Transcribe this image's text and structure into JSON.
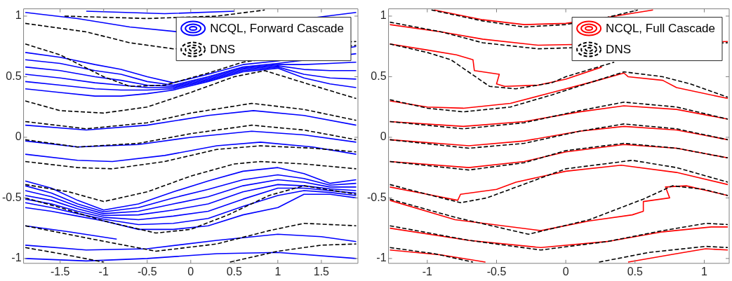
{
  "chart_data": [
    {
      "type": "line",
      "legend": "top right",
      "xlim": [
        -1.92,
        1.92
      ],
      "ylim": [
        -1.04,
        1.06
      ],
      "xticks": [
        -1.5,
        -1,
        -0.5,
        0,
        0.5,
        1,
        1.5
      ],
      "yticks": [
        -1,
        -0.5,
        0,
        0.5,
        1
      ],
      "series": [
        {
          "name": "NCQL, Forward Cascade",
          "color": "#0000ff",
          "line_style": "solid",
          "x": [
            -1.9,
            -1.3,
            -0.7,
            0,
            1.9
          ],
          "values": [
            1.03,
            0.98,
            0.91,
            0.86,
            1.03
          ]
        },
        {
          "color": "#0000ff",
          "line_style": "solid",
          "x": [
            -1.2,
            -0.3,
            0.5
          ],
          "values": [
            1.04,
            1.02,
            1.04
          ]
        },
        {
          "color": "#0000ff",
          "line_style": "solid",
          "x": [
            -1.9,
            -1.5,
            -1.1,
            -0.8,
            -0.5,
            -0.2,
            0.2,
            0.6,
            1.0,
            1.9
          ],
          "values": [
            0.7,
            0.66,
            0.6,
            0.56,
            0.5,
            0.45,
            0.52,
            0.6,
            0.63,
            0.75
          ]
        },
        {
          "color": "#0000ff",
          "line_style": "solid",
          "x": [
            -1.9,
            -1.5,
            -1.1,
            -0.8,
            -0.5,
            -0.2,
            0.2,
            0.6,
            1.0,
            1.9
          ],
          "values": [
            0.64,
            0.61,
            0.55,
            0.52,
            0.46,
            0.43,
            0.5,
            0.58,
            0.61,
            0.69
          ]
        },
        {
          "color": "#0000ff",
          "line_style": "solid",
          "x": [
            -1.9,
            -1.5,
            -1.1,
            -0.8,
            -0.5,
            -0.2,
            0.2,
            0.6,
            1.0,
            1.3,
            1.6,
            1.9
          ],
          "values": [
            0.58,
            0.55,
            0.5,
            0.47,
            0.43,
            0.42,
            0.49,
            0.57,
            0.6,
            0.6,
            0.61,
            0.62
          ]
        },
        {
          "color": "#0000ff",
          "line_style": "solid",
          "x": [
            -1.9,
            -1.5,
            -1.1,
            -0.8,
            -0.5,
            -0.2,
            0.2,
            0.6,
            1.0,
            1.3,
            1.6,
            1.9
          ],
          "values": [
            0.52,
            0.49,
            0.45,
            0.43,
            0.41,
            0.41,
            0.48,
            0.56,
            0.59,
            0.56,
            0.55,
            0.55
          ]
        },
        {
          "color": "#0000ff",
          "line_style": "solid",
          "x": [
            -1.9,
            -1.5,
            -1.1,
            -0.8,
            -0.5,
            -0.2,
            0.2,
            0.6,
            1.0,
            1.3,
            1.6,
            1.9
          ],
          "values": [
            0.46,
            0.43,
            0.4,
            0.39,
            0.39,
            0.4,
            0.47,
            0.55,
            0.58,
            0.52,
            0.49,
            0.48
          ]
        },
        {
          "color": "#0000ff",
          "line_style": "solid",
          "x": [
            -1.9,
            -1.5,
            -1.1,
            -0.8,
            -0.5,
            -0.2,
            0.2,
            0.6,
            1.0,
            1.3,
            1.6,
            1.9
          ],
          "values": [
            0.4,
            0.37,
            0.34,
            0.34,
            0.36,
            0.39,
            0.46,
            0.54,
            0.57,
            0.49,
            0.44,
            0.41
          ]
        },
        {
          "color": "#0000ff",
          "line_style": "solid",
          "x": [
            -1.9,
            -1.2,
            -0.5,
            0.2,
            0.72,
            1.3,
            1.9
          ],
          "values": [
            0.1,
            0.06,
            0.1,
            0.18,
            0.22,
            0.18,
            0.1
          ]
        },
        {
          "color": "#0000ff",
          "line_style": "solid",
          "x": [
            -1.9,
            -1.3,
            -0.6,
            0,
            0.7,
            1.3,
            1.9
          ],
          "values": [
            -0.03,
            -0.08,
            -0.06,
            0.0,
            0.05,
            0.02,
            -0.04
          ]
        },
        {
          "color": "#0000ff",
          "line_style": "solid",
          "x": [
            -1.9,
            -1.3,
            -0.9,
            -0.3,
            0.3,
            0.8,
            1.4,
            1.9
          ],
          "values": [
            -0.14,
            -0.19,
            -0.2,
            -0.15,
            -0.07,
            -0.04,
            -0.08,
            -0.14
          ]
        },
        {
          "color": "#0000ff",
          "line_style": "solid",
          "x": [
            -1.9,
            -1.6,
            -1.3,
            -1.0,
            -0.6,
            -0.2,
            0.2,
            0.6,
            1.0,
            1.3,
            1.6,
            1.9
          ],
          "values": [
            -0.36,
            -0.42,
            -0.52,
            -0.6,
            -0.55,
            -0.45,
            -0.36,
            -0.28,
            -0.25,
            -0.3,
            -0.38,
            -0.35
          ]
        },
        {
          "color": "#0000ff",
          "line_style": "solid",
          "x": [
            -1.9,
            -1.6,
            -1.3,
            -1.0,
            -0.6,
            -0.2,
            0.2,
            0.6,
            1.0,
            1.3,
            1.6,
            1.9
          ],
          "values": [
            -0.4,
            -0.46,
            -0.55,
            -0.615,
            -0.58,
            -0.5,
            -0.43,
            -0.35,
            -0.31,
            -0.34,
            -0.395,
            -0.38
          ]
        },
        {
          "color": "#0000ff",
          "line_style": "solid",
          "x": [
            -1.9,
            -1.6,
            -1.3,
            -1.0,
            -0.6,
            -0.2,
            0.2,
            0.6,
            1.0,
            1.3,
            1.6,
            1.9
          ],
          "values": [
            -0.44,
            -0.49,
            -0.57,
            -0.63,
            -0.61,
            -0.55,
            -0.49,
            -0.4,
            -0.35,
            -0.37,
            -0.41,
            -0.41
          ]
        },
        {
          "color": "#0000ff",
          "line_style": "solid",
          "x": [
            -1.9,
            -1.6,
            -1.3,
            -1.0,
            -0.6,
            -0.2,
            0.2,
            0.6,
            1.0,
            1.3,
            1.6,
            1.9
          ],
          "values": [
            -0.48,
            -0.52,
            -0.59,
            -0.645,
            -0.64,
            -0.6,
            -0.55,
            -0.45,
            -0.39,
            -0.4,
            -0.425,
            -0.44
          ]
        },
        {
          "color": "#0000ff",
          "line_style": "solid",
          "x": [
            -1.9,
            -1.6,
            -1.3,
            -1.0,
            -0.6,
            -0.2,
            0.2,
            0.6,
            1.0,
            1.3,
            1.6,
            1.9
          ],
          "values": [
            -0.51,
            -0.55,
            -0.61,
            -0.66,
            -0.68,
            -0.65,
            -0.61,
            -0.51,
            -0.42,
            -0.42,
            -0.44,
            -0.46
          ]
        },
        {
          "color": "#0000ff",
          "line_style": "solid",
          "x": [
            -1.9,
            -1.6,
            -1.3,
            -1.0,
            -0.6,
            -0.2,
            0.2,
            0.6,
            1.0,
            1.3,
            1.6,
            1.9
          ],
          "values": [
            -0.54,
            -0.58,
            -0.63,
            -0.675,
            -0.72,
            -0.71,
            -0.67,
            -0.57,
            -0.48,
            -0.44,
            -0.455,
            -0.48
          ]
        },
        {
          "color": "#0000ff",
          "line_style": "solid",
          "x": [
            -1.9,
            -1.6,
            -1.3,
            -1.0,
            -0.6,
            -0.2,
            0.2,
            0.6,
            1.0,
            1.3,
            1.6,
            1.9
          ],
          "values": [
            -0.58,
            -0.61,
            -0.65,
            -0.69,
            -0.76,
            -0.76,
            -0.73,
            -0.64,
            -0.58,
            -0.47,
            -0.47,
            -0.5
          ]
        },
        {
          "color": "#0000ff",
          "line_style": "solid",
          "x": [
            -1.9,
            -1.4,
            -0.85
          ],
          "values": [
            -0.73,
            -0.78,
            -0.84
          ]
        },
        {
          "color": "#0000ff",
          "line_style": "solid",
          "x": [
            -1.9,
            -1.2,
            -0.5,
            0.3,
            1.0,
            1.5,
            1.9
          ],
          "values": [
            -0.89,
            -0.93,
            -0.92,
            -0.85,
            -0.8,
            -0.82,
            -0.86
          ]
        },
        {
          "color": "#0000ff",
          "line_style": "solid",
          "x": [
            -1.9,
            -1.2,
            -0.5,
            0.3,
            1.0,
            1.9
          ],
          "values": [
            -1.0,
            -1.02,
            -1.0,
            -0.96,
            -0.95,
            -1.0
          ]
        },
        {
          "name": "DNS",
          "color": "#000000",
          "line_style": "dashed",
          "x": [
            -1.45,
            -0.5,
            0.3,
            0.85
          ],
          "values": [
            1.0,
            0.98,
            1.0,
            1.05
          ]
        },
        {
          "color": "#000000",
          "line_style": "dashed",
          "x": [
            -1.9,
            -1.2,
            -0.7,
            -0.2,
            1.9
          ],
          "values": [
            0.94,
            0.87,
            0.78,
            0.73,
            0.79
          ]
        },
        {
          "color": "#000000",
          "line_style": "dashed",
          "x": [
            -1.9,
            -1.5,
            -1.0,
            -0.7,
            -0.3,
            0.2,
            0.6,
            1.9
          ],
          "values": [
            0.77,
            0.68,
            0.5,
            0.42,
            0.43,
            0.53,
            0.62,
            0.76
          ]
        },
        {
          "color": "#000000",
          "line_style": "dashed",
          "x": [
            -1.9,
            -1.5,
            -1.0,
            -0.5,
            0,
            0.5,
            0.85,
            1.3,
            1.9
          ],
          "values": [
            0.3,
            0.22,
            0.2,
            0.25,
            0.37,
            0.5,
            0.55,
            0.45,
            0.32
          ]
        },
        {
          "color": "#000000",
          "line_style": "dashed",
          "x": [
            -1.9,
            -1.2,
            -0.5,
            0,
            0.7,
            1.3,
            1.9
          ],
          "values": [
            0.13,
            0.07,
            0.12,
            0.2,
            0.28,
            0.23,
            0.14
          ]
        },
        {
          "color": "#000000",
          "line_style": "dashed",
          "x": [
            -1.9,
            -1.3,
            -0.6,
            0,
            0.7,
            1.3,
            1.9
          ],
          "values": [
            -0.02,
            -0.08,
            -0.05,
            0.03,
            0.1,
            0.06,
            -0.02
          ]
        },
        {
          "color": "#000000",
          "line_style": "dashed",
          "x": [
            -1.9,
            -1.3,
            -0.9,
            -0.3,
            0.3,
            0.8,
            1.4,
            1.9
          ],
          "values": [
            -0.2,
            -0.25,
            -0.26,
            -0.2,
            -0.1,
            -0.07,
            -0.09,
            -0.12
          ]
        },
        {
          "color": "#000000",
          "line_style": "dashed",
          "x": [
            -1.9,
            -1.4,
            -1.0,
            -0.5,
            0,
            0.5,
            0.8,
            1.3,
            1.9
          ],
          "values": [
            -0.39,
            -0.45,
            -0.53,
            -0.45,
            -0.32,
            -0.22,
            -0.2,
            -0.22,
            -0.26
          ]
        },
        {
          "color": "#000000",
          "line_style": "dashed",
          "x": [
            -1.9,
            -1.5,
            -1.0,
            -0.4,
            0,
            0.43,
            0.9,
            1.3,
            1.9
          ],
          "values": [
            -0.5,
            -0.58,
            -0.69,
            -0.79,
            -0.76,
            -0.64,
            -0.48,
            -0.4,
            -0.47
          ]
        },
        {
          "color": "#000000",
          "line_style": "dashed",
          "x": [
            -1.9,
            -1.2,
            -0.4,
            0.3,
            0.9,
            1.3,
            1.9
          ],
          "values": [
            -0.73,
            -0.83,
            -0.94,
            -0.88,
            -0.77,
            -0.71,
            -0.73
          ]
        },
        {
          "color": "#000000",
          "line_style": "dashed",
          "x": [
            -1.9,
            -1.5,
            -1.0
          ],
          "values": [
            -0.91,
            -0.96,
            -1.03
          ]
        },
        {
          "color": "#000000",
          "line_style": "dashed",
          "x": [
            0.45,
            1.0,
            1.5,
            1.9
          ],
          "values": [
            -1.03,
            -0.94,
            -0.89,
            -0.88
          ]
        }
      ]
    },
    {
      "type": "line",
      "legend": "top right",
      "xlim": [
        -1.28,
        1.18
      ],
      "ylim": [
        -1.04,
        1.06
      ],
      "xticks": [
        -1,
        -0.5,
        0,
        0.5,
        1
      ],
      "yticks": [
        -1,
        -0.5,
        0,
        0.5,
        1
      ],
      "series": [
        {
          "name": "NCQL, Full Cascade",
          "color": "#ff0000",
          "line_style": "solid",
          "x": [
            -0.95,
            -0.6,
            -0.3,
            0,
            0.3,
            0.63
          ],
          "values": [
            1.05,
            0.97,
            0.93,
            0.94,
            0.99,
            1.05
          ]
        },
        {
          "color": "#ff0000",
          "line_style": "solid",
          "x": [
            -1.27,
            -0.9,
            -0.6,
            -0.2,
            1.17
          ],
          "values": [
            0.93,
            0.87,
            0.81,
            0.76,
            0.79
          ]
        },
        {
          "color": "#ff0000",
          "line_style": "solid",
          "x": [
            -1.27,
            -1.0,
            -0.79,
            -0.67,
            -0.66,
            -0.48,
            -0.5,
            -0.44,
            -0.2,
            0.0,
            0.26
          ],
          "values": [
            0.77,
            0.72,
            0.68,
            0.64,
            0.55,
            0.52,
            0.44,
            0.42,
            0.43,
            0.48,
            0.58
          ]
        },
        {
          "color": "#ff0000",
          "line_style": "solid",
          "x": [
            -1.27,
            -1.0,
            -0.74,
            -0.4,
            -0.1,
            0.2,
            0.42,
            0.45,
            0.7,
            0.8,
            1.17
          ],
          "values": [
            0.3,
            0.25,
            0.24,
            0.28,
            0.37,
            0.46,
            0.53,
            0.5,
            0.47,
            0.41,
            0.32
          ]
        },
        {
          "color": "#ff0000",
          "line_style": "solid",
          "x": [
            -1.27,
            -0.74,
            -0.3,
            0.1,
            0.42,
            0.8,
            1.17
          ],
          "values": [
            0.13,
            0.09,
            0.13,
            0.21,
            0.26,
            0.23,
            0.15
          ]
        },
        {
          "color": "#ff0000",
          "line_style": "solid",
          "x": [
            -1.27,
            -0.7,
            -0.3,
            0.1,
            0.42,
            0.8,
            1.17
          ],
          "values": [
            -0.02,
            -0.07,
            -0.03,
            0.05,
            0.09,
            0.06,
            -0.02
          ]
        },
        {
          "color": "#ff0000",
          "line_style": "solid",
          "x": [
            -1.27,
            -0.7,
            -0.3,
            0,
            0.42,
            0.8,
            1.17
          ],
          "values": [
            -0.2,
            -0.25,
            -0.2,
            -0.12,
            -0.06,
            -0.09,
            -0.17
          ]
        },
        {
          "color": "#ff0000",
          "line_style": "solid",
          "x": [
            -1.27,
            -1.0,
            -0.78,
            -0.76,
            -0.5,
            -0.36,
            0,
            0.4,
            0.8,
            1.17
          ],
          "values": [
            -0.41,
            -0.47,
            -0.52,
            -0.47,
            -0.43,
            -0.37,
            -0.28,
            -0.23,
            -0.29,
            -0.39
          ]
        },
        {
          "color": "#ff0000",
          "line_style": "solid",
          "x": [
            -1.27,
            -0.8,
            -0.18,
            0.17,
            0.48,
            0.56,
            0.56,
            0.75,
            0.72,
            0.87,
            1.17
          ],
          "values": [
            -0.52,
            -0.68,
            -0.77,
            -0.69,
            -0.64,
            -0.61,
            -0.53,
            -0.5,
            -0.41,
            -0.4,
            -0.48
          ]
        },
        {
          "color": "#ff0000",
          "line_style": "solid",
          "x": [
            -1.27,
            -0.7,
            -0.18,
            0.3,
            0.7,
            1.05,
            1.17
          ],
          "values": [
            -0.75,
            -0.85,
            -0.91,
            -0.86,
            -0.78,
            -0.74,
            -0.74
          ]
        },
        {
          "color": "#ff0000",
          "line_style": "solid",
          "x": [
            -1.27,
            -0.9,
            -0.58
          ],
          "values": [
            -0.93,
            -0.97,
            -1.03
          ]
        },
        {
          "color": "#ff0000",
          "line_style": "solid",
          "x": [
            0.45,
            0.8,
            1.01,
            1.17
          ],
          "values": [
            -1.03,
            -0.96,
            -0.92,
            -0.93
          ]
        },
        {
          "name": "DNS",
          "color": "#000000",
          "line_style": "dashed",
          "x": [
            -0.97,
            -0.6,
            -0.3,
            0,
            0.3,
            0.52
          ],
          "values": [
            1.05,
            0.96,
            0.91,
            0.93,
            0.99,
            1.05
          ]
        },
        {
          "color": "#000000",
          "line_style": "dashed",
          "x": [
            -1.27,
            -0.9,
            -0.6,
            -0.2,
            1.17
          ],
          "values": [
            0.95,
            0.87,
            0.78,
            0.73,
            0.78
          ]
        },
        {
          "color": "#000000",
          "line_style": "dashed",
          "x": [
            -1.27,
            -1.0,
            -0.83,
            -0.55,
            -0.36,
            -0.1,
            0,
            0.35
          ],
          "values": [
            0.77,
            0.7,
            0.64,
            0.42,
            0.4,
            0.45,
            0.5,
            0.62
          ]
        },
        {
          "color": "#000000",
          "line_style": "dashed",
          "x": [
            -1.27,
            -1.0,
            -0.74,
            -0.4,
            -0.1,
            0.2,
            0.42,
            0.7,
            0.9,
            1.17
          ],
          "values": [
            0.31,
            0.24,
            0.21,
            0.25,
            0.35,
            0.46,
            0.54,
            0.5,
            0.44,
            0.33
          ]
        },
        {
          "color": "#000000",
          "line_style": "dashed",
          "x": [
            -1.27,
            -0.74,
            -0.3,
            0.1,
            0.42,
            0.8,
            1.17
          ],
          "values": [
            0.13,
            0.07,
            0.12,
            0.22,
            0.29,
            0.25,
            0.15
          ]
        },
        {
          "color": "#000000",
          "line_style": "dashed",
          "x": [
            -1.27,
            -0.7,
            -0.3,
            0.1,
            0.42,
            0.8,
            1.17
          ],
          "values": [
            -0.02,
            -0.09,
            -0.05,
            0.05,
            0.11,
            0.07,
            -0.02
          ]
        },
        {
          "color": "#000000",
          "line_style": "dashed",
          "x": [
            -1.27,
            -0.7,
            -0.3,
            0,
            0.42,
            0.8,
            1.17
          ],
          "values": [
            -0.2,
            -0.27,
            -0.21,
            -0.11,
            -0.05,
            -0.09,
            -0.17
          ]
        },
        {
          "color": "#000000",
          "line_style": "dashed",
          "x": [
            -1.27,
            -1.0,
            -0.76,
            -0.57,
            0,
            0.48,
            0.8,
            1.17
          ],
          "values": [
            -0.39,
            -0.47,
            -0.54,
            -0.5,
            -0.26,
            -0.19,
            -0.25,
            -0.37
          ]
        },
        {
          "color": "#000000",
          "line_style": "dashed",
          "x": [
            -1.27,
            -0.8,
            -0.27,
            0.17,
            0.56,
            0.77,
            1.0,
            1.17
          ],
          "values": [
            -0.51,
            -0.66,
            -0.8,
            -0.68,
            -0.51,
            -0.4,
            -0.43,
            -0.48
          ]
        },
        {
          "color": "#000000",
          "line_style": "dashed",
          "x": [
            -1.27,
            -0.7,
            -0.18,
            0.3,
            0.7,
            1.01,
            1.17
          ],
          "values": [
            -0.73,
            -0.85,
            -0.93,
            -0.86,
            -0.77,
            -0.71,
            -0.72
          ]
        },
        {
          "color": "#000000",
          "line_style": "dashed",
          "x": [
            -1.27,
            -0.95,
            -0.67
          ],
          "values": [
            -0.91,
            -0.96,
            -1.03
          ]
        },
        {
          "color": "#000000",
          "line_style": "dashed",
          "x": [
            0.24,
            0.6,
            1.01,
            1.17
          ],
          "values": [
            -1.03,
            -0.95,
            -0.9,
            -0.91
          ]
        }
      ]
    }
  ]
}
